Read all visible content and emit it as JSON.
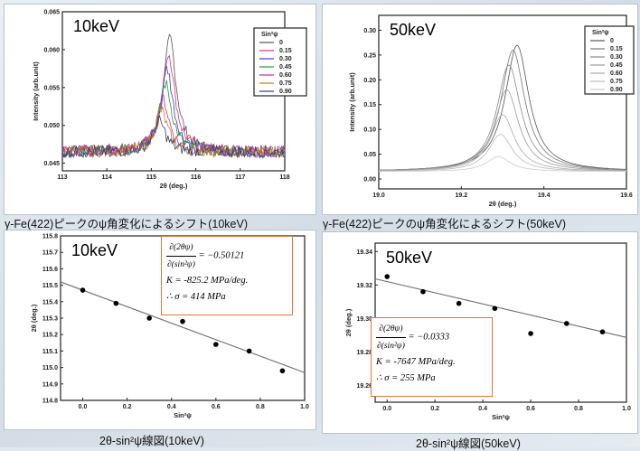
{
  "captions": {
    "tl": "γ-Fe(422)ピークのψ角変化によるシフト(10keV)",
    "tr": "γ-Fe(422)ピークのψ角変化によるシフト(50keV)",
    "bl": "2θ-sin²ψ線図(10keV)",
    "br": "2θ-sin²ψ線図(50keV)"
  },
  "formulas": {
    "bl": {
      "num": "∂(2θψ)",
      "den": "∂(sin²ψ)",
      "slope": "= −0.50121",
      "K": "K = -825.2 MPa/deg.",
      "sigma": "∴ σ = 414 MPa"
    },
    "br": {
      "num": "∂(2θψ)",
      "den": "∂(sin²ψ)",
      "slope": "= −0.0333",
      "K": "K = -7647 MPa/deg.",
      "sigma": "∴ σ = 255 MPa"
    }
  },
  "colors": {
    "fit_line": "#6e6e6e",
    "point": "#000000",
    "box_border": "#e0763a"
  },
  "chart_data": [
    {
      "type": "line",
      "energy_label": "10keV",
      "xlabel": "2θ (deg.)",
      "ylabel": "Intensity (arb.unit)",
      "xlim": [
        113,
        118
      ],
      "ylim": [
        0.044,
        0.065
      ],
      "xticks": [
        "113",
        "114",
        "115",
        "116",
        "117",
        "118"
      ],
      "yticks": [
        "0.045",
        "0.050",
        "0.055",
        "0.060",
        "0.065"
      ],
      "legend_title": "Sin²ψ",
      "legend_position": "top-right",
      "series": [
        {
          "name": "0",
          "color": "#555555",
          "peak": 115.42,
          "height": 0.0615
        },
        {
          "name": "0.15",
          "color": "#e0307a",
          "peak": 115.39,
          "height": 0.0595
        },
        {
          "name": "0.30",
          "color": "#3a3ad0",
          "peak": 115.35,
          "height": 0.0575
        },
        {
          "name": "0.45",
          "color": "#2a9a2a",
          "peak": 115.32,
          "height": 0.0555
        },
        {
          "name": "0.60",
          "color": "#c0309a",
          "peak": 115.26,
          "height": 0.0535
        },
        {
          "name": "0.75",
          "color": "#c08020",
          "peak": 115.22,
          "height": 0.052
        },
        {
          "name": "0.90",
          "color": "#304070",
          "peak": 115.18,
          "height": 0.0505
        }
      ]
    },
    {
      "type": "line",
      "energy_label": "50keV",
      "xlabel": "2θ (deg.)",
      "ylabel": "Intensity (arb.unit)",
      "xlim": [
        19.0,
        19.6
      ],
      "ylim": [
        -0.02,
        0.33
      ],
      "xticks": [
        "19.0",
        "19.2",
        "19.4",
        "19.6"
      ],
      "yticks": [
        "0.00",
        "0.05",
        "0.10",
        "0.15",
        "0.20",
        "0.25",
        "0.30"
      ],
      "legend_title": "Sin²ψ",
      "legend_position": "top-right",
      "series": [
        {
          "name": "0",
          "color": "#555555",
          "peak": 19.335,
          "height": 0.27
        },
        {
          "name": "0.15",
          "color": "#777777",
          "peak": 19.325,
          "height": 0.26
        },
        {
          "name": "0.30",
          "color": "#8a8a8a",
          "peak": 19.315,
          "height": 0.23
        },
        {
          "name": "0.45",
          "color": "#9a9a9a",
          "peak": 19.31,
          "height": 0.18
        },
        {
          "name": "0.60",
          "color": "#aaaaaa",
          "peak": 19.3,
          "height": 0.13
        },
        {
          "name": "0.75",
          "color": "#bbbbbb",
          "peak": 19.295,
          "height": 0.09
        },
        {
          "name": "0.90",
          "color": "#cccccc",
          "peak": 19.29,
          "height": 0.045
        }
      ]
    },
    {
      "type": "scatter",
      "energy_label": "10keV",
      "xlabel": "Sin²ψ",
      "ylabel": "2θ (deg.)",
      "xlim": [
        -0.1,
        1.0
      ],
      "ylim": [
        114.8,
        115.8
      ],
      "xticks": [
        "0.0",
        "0.2",
        "0.4",
        "0.6",
        "0.8",
        "1.0"
      ],
      "yticks": [
        "114.8",
        "114.9",
        "115.0",
        "115.1",
        "115.2",
        "115.3",
        "115.4",
        "115.5",
        "115.6",
        "115.7",
        "115.8"
      ],
      "x": [
        0,
        0.15,
        0.3,
        0.45,
        0.6,
        0.75,
        0.9
      ],
      "y": [
        115.47,
        115.39,
        115.3,
        115.28,
        115.14,
        115.1,
        114.98
      ],
      "fit": {
        "intercept": 115.47,
        "slope": -0.50121
      }
    },
    {
      "type": "scatter",
      "energy_label": "50keV",
      "xlabel": "Sin²ψ",
      "ylabel": "2θ (deg.)",
      "xlim": [
        -0.05,
        1.0
      ],
      "ylim": [
        19.25,
        19.345
      ],
      "xticks": [
        "0.0",
        "0.2",
        "0.4",
        "0.6",
        "0.8",
        "1.0"
      ],
      "yticks": [
        "19.26",
        "19.28",
        "19.30",
        "19.32",
        "19.34"
      ],
      "x": [
        0,
        0.15,
        0.3,
        0.45,
        0.6,
        0.75,
        0.9
      ],
      "y": [
        19.325,
        19.316,
        19.309,
        19.306,
        19.291,
        19.297,
        19.292
      ],
      "fit": {
        "intercept": 19.322,
        "slope": -0.0333
      }
    }
  ]
}
